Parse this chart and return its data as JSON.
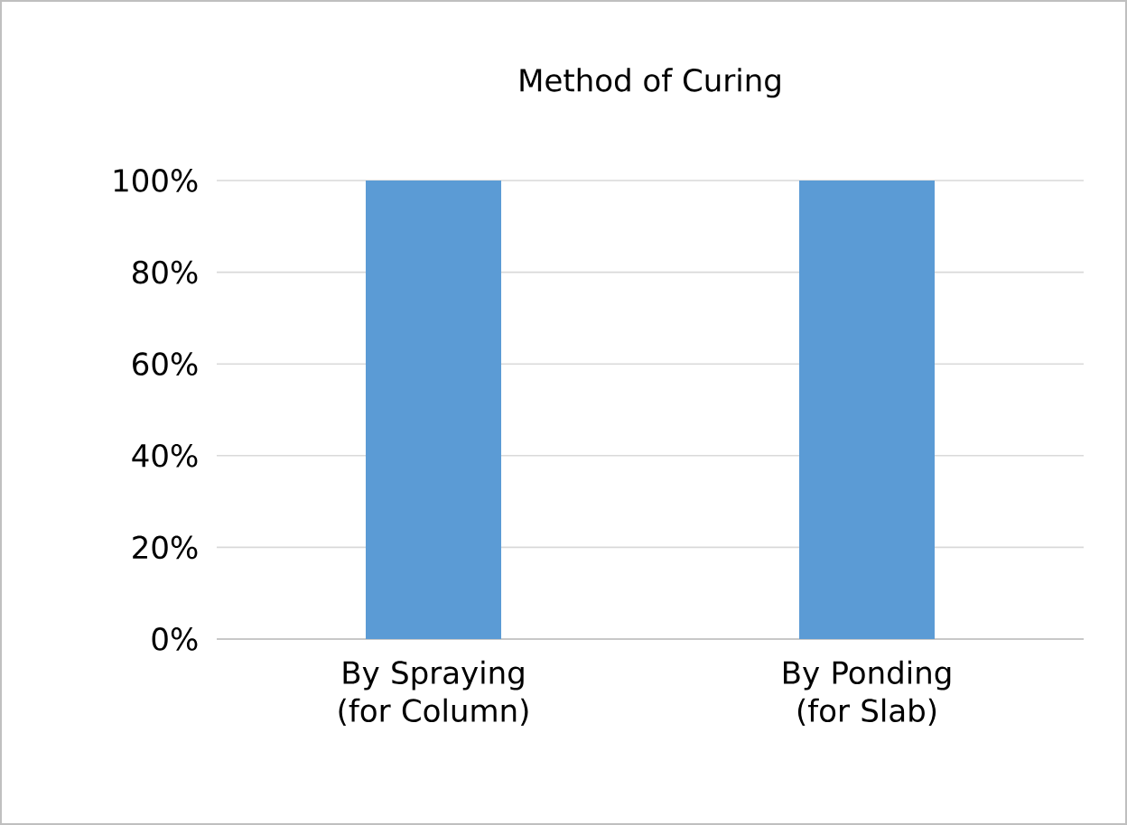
{
  "chart_data": {
    "type": "bar",
    "title": "Method of Curing",
    "categories": [
      "By Spraying (for Column)",
      "By Ponding (for Slab)"
    ],
    "values": [
      100,
      100
    ],
    "color": "#5b9bd5",
    "ylim": [
      0,
      100
    ],
    "yticks": [
      {
        "value": 0,
        "label": "0%"
      },
      {
        "value": 20,
        "label": "20%"
      },
      {
        "value": 40,
        "label": "40%"
      },
      {
        "value": 60,
        "label": "60%"
      },
      {
        "value": 80,
        "label": "80%"
      },
      {
        "value": 100,
        "label": "100%"
      }
    ],
    "grid": "y"
  }
}
